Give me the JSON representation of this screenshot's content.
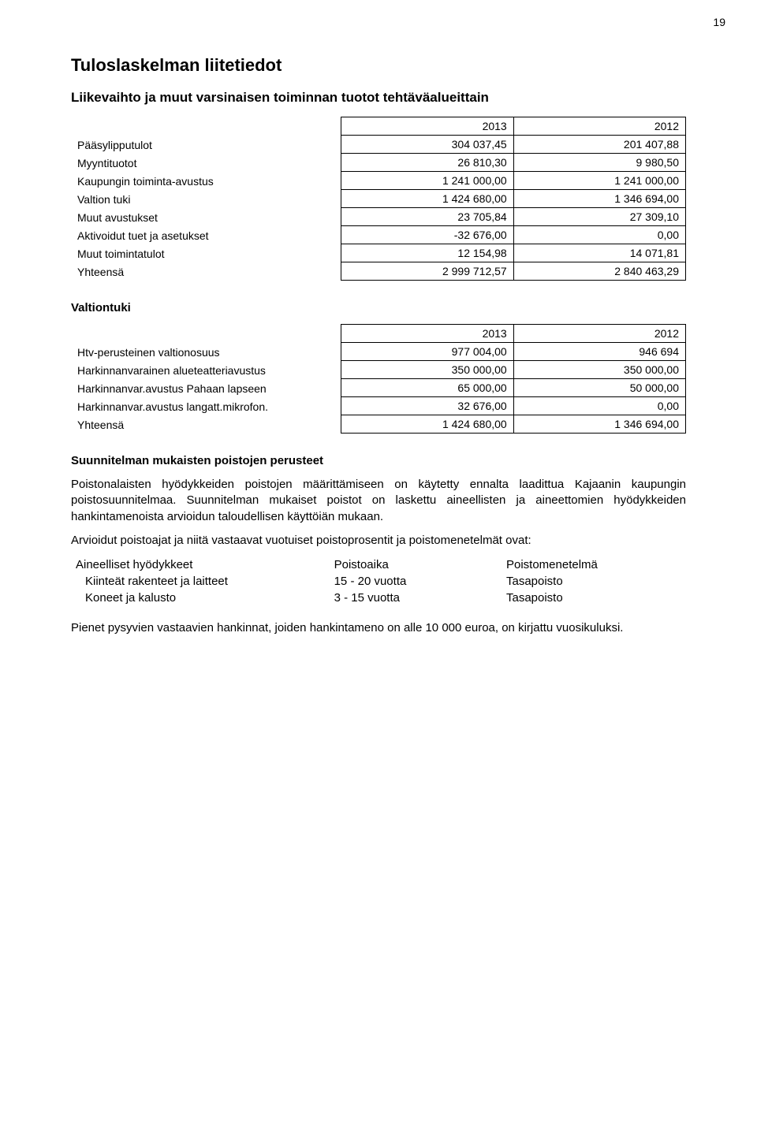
{
  "page_number": "19",
  "title": "Tuloslaskelman liitetiedot",
  "section1": {
    "heading": "Liikevaihto ja muut varsinaisen toiminnan tuotot tehtäväalueittain",
    "year_a": "2013",
    "year_b": "2012",
    "rows": [
      {
        "label": "Pääsylipputulot",
        "a": "304 037,45",
        "b": "201 407,88"
      },
      {
        "label": "Myyntituotot",
        "a": "26 810,30",
        "b": "9 980,50"
      },
      {
        "label": "Kaupungin toiminta-avustus",
        "a": "1 241 000,00",
        "b": "1 241 000,00"
      },
      {
        "label": "Valtion tuki",
        "a": "1 424 680,00",
        "b": "1 346 694,00"
      },
      {
        "label": "Muut avustukset",
        "a": "23 705,84",
        "b": "27 309,10"
      },
      {
        "label": "Aktivoidut tuet ja asetukset",
        "a": "-32 676,00",
        "b": "0,00"
      },
      {
        "label": "Muut toimintatulot",
        "a": "12 154,98",
        "b": "14 071,81"
      }
    ],
    "total": {
      "label": "Yhteensä",
      "a": "2 999 712,57",
      "b": "2 840 463,29"
    }
  },
  "section2": {
    "heading": "Valtiontuki",
    "year_a": "2013",
    "year_b": "2012",
    "rows": [
      {
        "label": "Htv-perusteinen valtionosuus",
        "a": "977 004,00",
        "b": "946 694"
      },
      {
        "label": "Harkinnanvarainen alueteatteriavustus",
        "a": "350 000,00",
        "b": "350 000,00"
      },
      {
        "label": "Harkinnanvar.avustus Pahaan lapseen",
        "a": "65 000,00",
        "b": "50 000,00"
      },
      {
        "label": "Harkinnanvar.avustus langatt.mikrofon.",
        "a": "32 676,00",
        "b": "0,00"
      }
    ],
    "total": {
      "label": "Yhteensä",
      "a": "1 424 680,00",
      "b": "1 346 694,00"
    }
  },
  "section3": {
    "heading": "Suunnitelman mukaisten poistojen perusteet",
    "para1": "Poistonalaisten hyödykkeiden poistojen määrittämiseen on käytetty ennalta laadittua Kajaanin kaupungin poistosuunnitelmaa. Suunnitelman mukaiset poistot on laskettu aineellisten ja aineettomien hyödykkeiden hankintamenoista arvioidun taloudellisen käyttöiän mukaan.",
    "para2": "Arvioidut poistoajat ja niitä vastaavat vuotuiset poistoprosentit ja poistomenetelmät ovat:",
    "table": {
      "header": {
        "a": "Aineelliset hyödykkeet",
        "b": "Poistoaika",
        "c": "Poistomenetelmä"
      },
      "rows": [
        {
          "a": "Kiinteät rakenteet ja laitteet",
          "b": "15 - 20 vuotta",
          "c": "Tasapoisto"
        },
        {
          "a": "Koneet ja kalusto",
          "b": "3 - 15 vuotta",
          "c": "Tasapoisto"
        }
      ]
    },
    "para3": "Pienet pysyvien vastaavien hankinnat, joiden hankintameno on alle 10 000 euroa, on kirjattu vuosikuluksi."
  }
}
